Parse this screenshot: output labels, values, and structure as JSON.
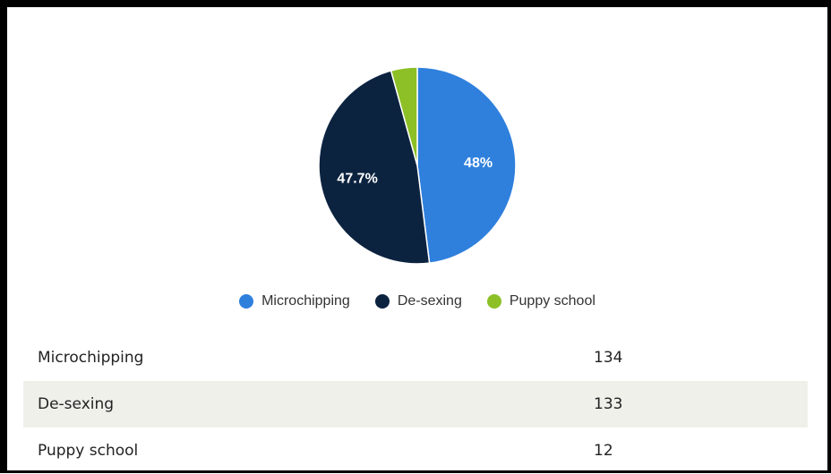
{
  "chart_data": {
    "type": "pie",
    "categories": [
      "Microchipping",
      "De-sexing",
      "Puppy school"
    ],
    "values": [
      134,
      133,
      12
    ],
    "slice_labels": [
      "48%",
      "47.7%",
      ""
    ],
    "colors": [
      "#2f80dd",
      "#0c2340",
      "#8cc026"
    ],
    "legend_position": "bottom"
  },
  "legend": [
    {
      "label": "Microchipping",
      "color": "#2f80dd"
    },
    {
      "label": "De-sexing",
      "color": "#0c2340"
    },
    {
      "label": "Puppy school",
      "color": "#8cc026"
    }
  ],
  "table": {
    "rows": [
      {
        "name": "Microchipping",
        "value": "134"
      },
      {
        "name": "De-sexing",
        "value": "133"
      },
      {
        "name": "Puppy school",
        "value": "12"
      }
    ]
  }
}
